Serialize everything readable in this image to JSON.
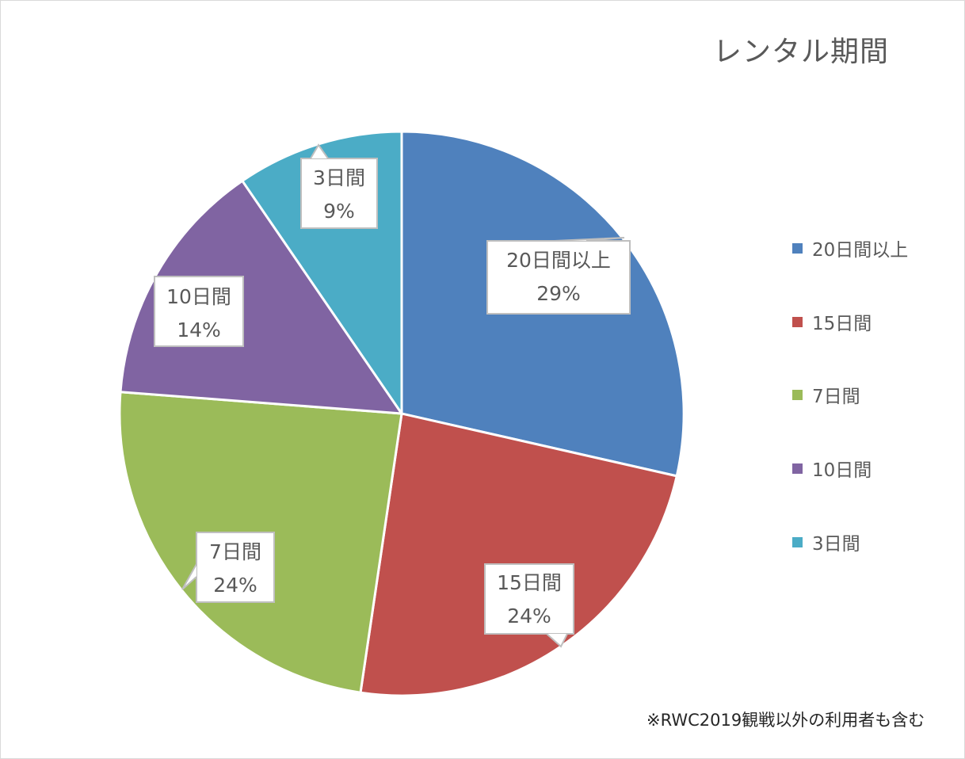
{
  "chart_data": {
    "type": "pie",
    "title": "レンタル期間",
    "categories": [
      "20日間以上",
      "15日間",
      "7日間",
      "10日間",
      "3日間"
    ],
    "values": [
      29,
      24,
      24,
      14,
      9
    ],
    "value_labels": [
      "29%",
      "24%",
      "24%",
      "14%",
      "9%"
    ],
    "colors": [
      "#4f81bd",
      "#c0504d",
      "#9bbb59",
      "#8064a2",
      "#4bacc6"
    ],
    "legend_position": "right",
    "data_labels": "category and percentage in callouts",
    "annotation": "※RWC2019観戦以外の利用者も含む"
  },
  "title": "レンタル期間",
  "legend": {
    "items": [
      {
        "label": "20日間以上",
        "color": "#4f81bd"
      },
      {
        "label": "15日間",
        "color": "#c0504d"
      },
      {
        "label": "7日間",
        "color": "#9bbb59"
      },
      {
        "label": "10日間",
        "color": "#8064a2"
      },
      {
        "label": "3日間",
        "color": "#4bacc6"
      }
    ]
  },
  "labels": [
    {
      "category": "20日間以上",
      "percent": "29%"
    },
    {
      "category": "15日間",
      "percent": "24%"
    },
    {
      "category": "7日間",
      "percent": "24%"
    },
    {
      "category": "10日間",
      "percent": "14%"
    },
    {
      "category": "3日間",
      "percent": "9%"
    }
  ],
  "note": "※RWC2019観戦以外の利用者も含む"
}
